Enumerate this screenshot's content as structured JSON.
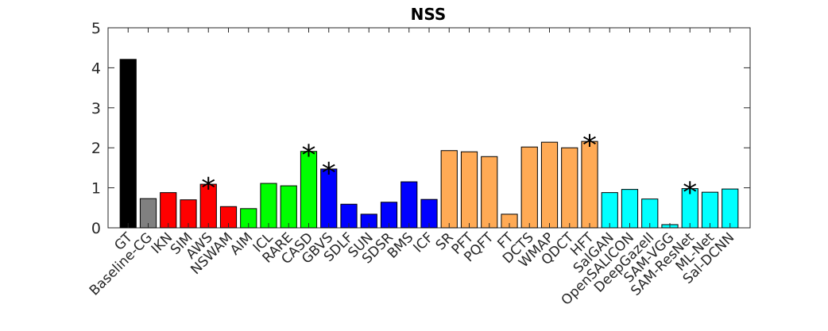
{
  "chart_data": {
    "type": "bar",
    "title": "NSS",
    "xlabel": "",
    "ylabel": "",
    "ylim": [
      0,
      5
    ],
    "yticks": [
      0,
      1,
      2,
      3,
      4,
      5
    ],
    "grid": false,
    "categories": [
      "GT",
      "Baseline-CG",
      "IKN",
      "SIM",
      "AWS",
      "NSWAM",
      "AIM",
      "ICL",
      "RARE",
      "CASD",
      "GBVS",
      "SDLF",
      "SUN",
      "SDSR",
      "BMS",
      "ICF",
      "SR",
      "PFT",
      "PQFT",
      "FT",
      "DCTS",
      "WMAP",
      "QDCT",
      "HFT",
      "SalGAN",
      "OpenSALICON",
      "DeepGazeII",
      "SAM-VGG",
      "SAM-ResNet",
      "ML-Net",
      "Sal-DCNN"
    ],
    "values": [
      4.21,
      0.73,
      0.88,
      0.7,
      1.09,
      0.53,
      0.48,
      1.11,
      1.05,
      1.91,
      1.47,
      0.59,
      0.34,
      0.64,
      1.15,
      0.71,
      1.93,
      1.9,
      1.78,
      0.34,
      2.02,
      2.14,
      2.0,
      2.16,
      0.88,
      0.96,
      0.72,
      0.08,
      0.98,
      0.89,
      0.97
    ],
    "colors": [
      "#000000",
      "#808080",
      "#ff0000",
      "#ff0000",
      "#ff0000",
      "#ff0000",
      "#00ff00",
      "#00ff00",
      "#00ff00",
      "#00ff00",
      "#0000ff",
      "#0000ff",
      "#0000ff",
      "#0000ff",
      "#0000ff",
      "#0000ff",
      "#ffaa55",
      "#ffaa55",
      "#ffaa55",
      "#ffaa55",
      "#ffaa55",
      "#ffaa55",
      "#ffaa55",
      "#ffaa55",
      "#00ffff",
      "#00ffff",
      "#00ffff",
      "#00ffff",
      "#00ffff",
      "#00ffff",
      "#00ffff"
    ],
    "annotations": [
      {
        "category": "AWS",
        "text": "*"
      },
      {
        "category": "CASD",
        "text": "*"
      },
      {
        "category": "GBVS",
        "text": "*"
      },
      {
        "category": "HFT",
        "text": "*"
      },
      {
        "category": "SAM-ResNet",
        "text": "*"
      }
    ]
  }
}
